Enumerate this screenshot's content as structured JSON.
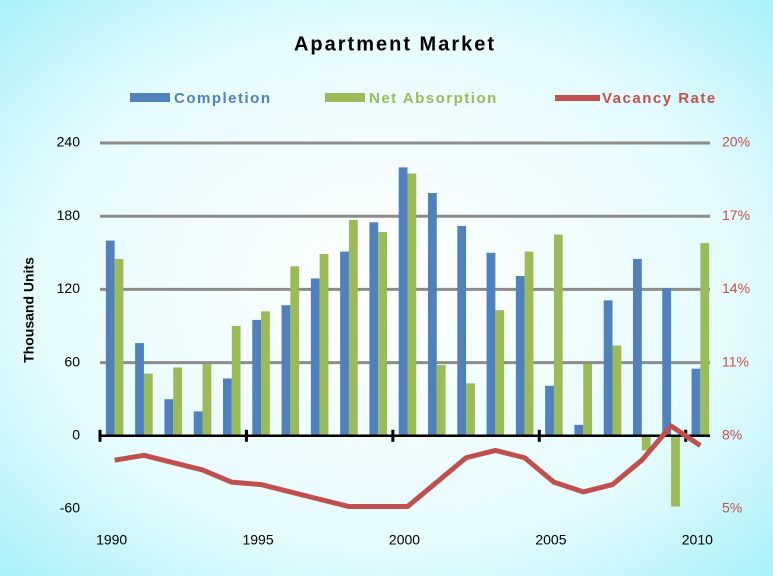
{
  "chart_data": {
    "type": "bar",
    "title": "Apartment Market",
    "ylabel": "Thousand Units",
    "categories": [
      "1990",
      null,
      null,
      null,
      null,
      "1995",
      null,
      null,
      null,
      null,
      "2000",
      null,
      null,
      null,
      null,
      "2005",
      null,
      null,
      null,
      null,
      "2010"
    ],
    "series": [
      {
        "name": "Completion",
        "color": "#4f81bd",
        "type": "bar",
        "values": [
          160,
          76,
          30,
          20,
          47,
          95,
          107,
          129,
          151,
          175,
          220,
          199,
          172,
          150,
          131,
          41,
          9,
          111,
          145,
          121,
          55
        ]
      },
      {
        "name": "Net Absorption",
        "color": "#9bbb59",
        "type": "bar",
        "values": [
          145,
          51,
          56,
          59,
          90,
          102,
          139,
          149,
          177,
          167,
          215,
          58,
          43,
          103,
          151,
          165,
          59,
          74,
          -12,
          -58,
          158
        ]
      },
      {
        "name": "Vacancy Rate",
        "color": "#c0504d",
        "type": "line",
        "axis": "y2",
        "values": [
          7.0,
          7.2,
          6.9,
          6.6,
          6.1,
          6.0,
          5.7,
          5.4,
          5.1,
          5.1,
          5.1,
          6.1,
          7.1,
          7.4,
          7.1,
          6.1,
          5.7,
          6.0,
          7.0,
          8.4,
          7.6
        ]
      }
    ],
    "ylim": [
      -60,
      240
    ],
    "yticks": [
      -60,
      0,
      60,
      120,
      180,
      240
    ],
    "y2lim": [
      5,
      20
    ],
    "y2ticks": [
      {
        "value": 5,
        "label": "5%"
      },
      {
        "value": 8,
        "label": "8%"
      },
      {
        "value": 11,
        "label": "11%"
      },
      {
        "value": 14,
        "label": "14%"
      },
      {
        "value": 17,
        "label": "17%"
      },
      {
        "value": 20,
        "label": "20%"
      }
    ],
    "grid": true,
    "legend": "top"
  }
}
